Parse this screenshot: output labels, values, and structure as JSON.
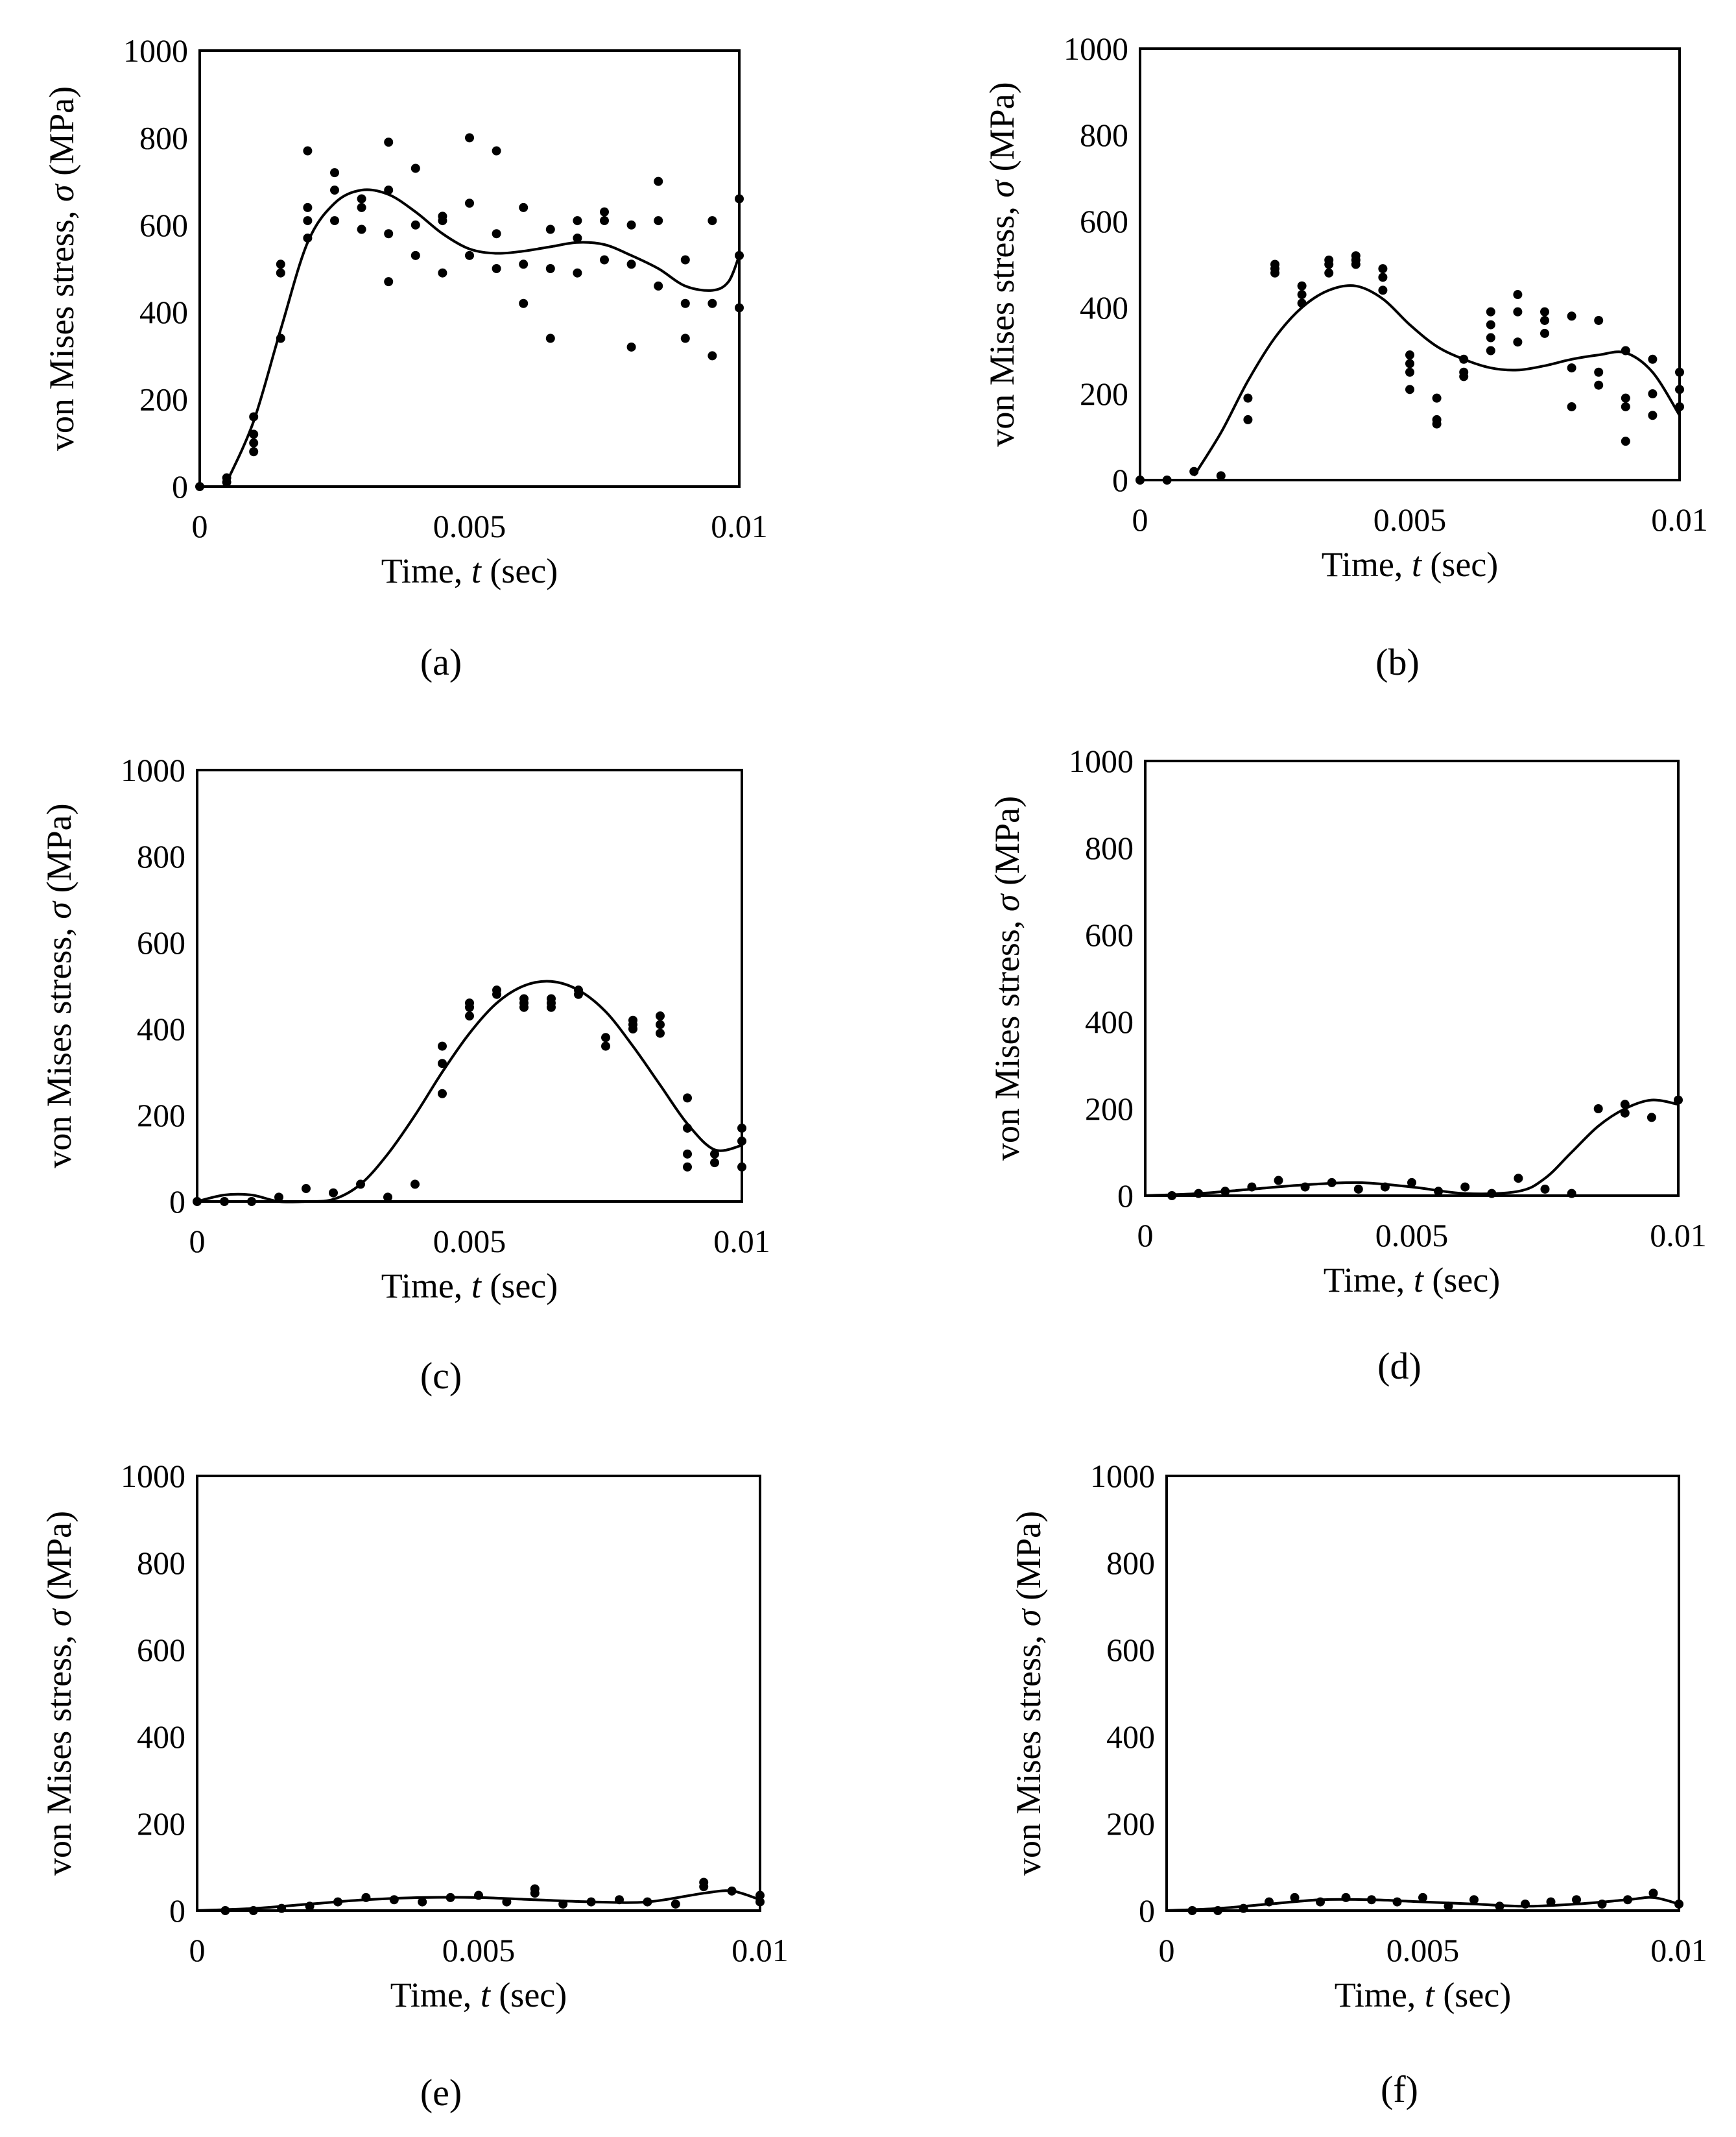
{
  "figure": {
    "panels_count": 6
  },
  "chart_data": [
    {
      "type": "scatter",
      "caption": "(a)",
      "xlabel": "Time, t (sec)",
      "xlabel_parts": [
        "Time, ",
        "t",
        " (sec)"
      ],
      "ylabel": "von Mises stress, σ (MPa)",
      "ylabel_parts": [
        "von Mises stress, ",
        "σ",
        " (MPa)"
      ],
      "xlim": [
        0,
        0.01
      ],
      "ylim": [
        0,
        1000
      ],
      "xticks": [
        0,
        0.005,
        0.01
      ],
      "xtick_labels": [
        "0",
        "0.005",
        "0.01"
      ],
      "yticks": [
        0,
        200,
        400,
        600,
        800,
        1000
      ],
      "ytick_labels": [
        "0",
        "200",
        "400",
        "600",
        "800",
        "1000"
      ],
      "series": [
        {
          "name": "simulation points",
          "kind": "points",
          "x": [
            0,
            0.0005,
            0.0005,
            0.001,
            0.001,
            0.001,
            0.001,
            0.0015,
            0.0015,
            0.0015,
            0.002,
            0.002,
            0.002,
            0.002,
            0.0025,
            0.0025,
            0.0025,
            0.003,
            0.003,
            0.003,
            0.0035,
            0.0035,
            0.0035,
            0.0035,
            0.004,
            0.004,
            0.004,
            0.0045,
            0.0045,
            0.0045,
            0.005,
            0.005,
            0.005,
            0.0055,
            0.0055,
            0.0055,
            0.006,
            0.006,
            0.006,
            0.0065,
            0.0065,
            0.0065,
            0.007,
            0.007,
            0.007,
            0.0075,
            0.0075,
            0.0075,
            0.008,
            0.008,
            0.008,
            0.0085,
            0.0085,
            0.0085,
            0.009,
            0.009,
            0.009,
            0.0095,
            0.0095,
            0.0095,
            0.01,
            0.01,
            0.01
          ],
          "y": [
            0,
            10,
            20,
            80,
            100,
            120,
            160,
            340,
            490,
            510,
            570,
            610,
            640,
            770,
            610,
            680,
            720,
            590,
            640,
            660,
            470,
            580,
            680,
            790,
            530,
            600,
            730,
            490,
            610,
            620,
            530,
            650,
            800,
            500,
            580,
            770,
            420,
            510,
            640,
            340,
            500,
            590,
            490,
            570,
            610,
            520,
            610,
            630,
            320,
            510,
            600,
            460,
            610,
            700,
            340,
            420,
            520,
            300,
            420,
            610,
            410,
            530,
            660
          ]
        },
        {
          "name": "fitted curve",
          "kind": "line",
          "x": [
            0.0005,
            0.001,
            0.0015,
            0.002,
            0.0025,
            0.003,
            0.0035,
            0.004,
            0.0045,
            0.005,
            0.0055,
            0.006,
            0.0065,
            0.007,
            0.0075,
            0.008,
            0.0085,
            0.009,
            0.0095,
            0.0098,
            0.01
          ],
          "y": [
            10,
            150,
            360,
            560,
            650,
            680,
            670,
            630,
            580,
            545,
            535,
            540,
            550,
            560,
            555,
            530,
            500,
            460,
            450,
            470,
            530
          ]
        }
      ]
    },
    {
      "type": "scatter",
      "caption": "(b)",
      "xlabel": "Time, t (sec)",
      "xlabel_parts": [
        "Time, ",
        "t",
        " (sec)"
      ],
      "ylabel": "von Mises stress, σ (MPa)",
      "ylabel_parts": [
        "von Mises stress, ",
        "σ",
        " (MPa)"
      ],
      "xlim": [
        0,
        0.01
      ],
      "ylim": [
        0,
        1000
      ],
      "xticks": [
        0,
        0.005,
        0.01
      ],
      "xtick_labels": [
        "0",
        "0.005",
        "0.01"
      ],
      "yticks": [
        0,
        200,
        400,
        600,
        800,
        1000
      ],
      "ytick_labels": [
        "0",
        "200",
        "400",
        "600",
        "800",
        "1000"
      ],
      "series": [
        {
          "name": "simulation points",
          "kind": "points",
          "x": [
            0,
            0.0005,
            0.001,
            0.0015,
            0.002,
            0.002,
            0.0025,
            0.0025,
            0.0025,
            0.003,
            0.003,
            0.003,
            0.0035,
            0.0035,
            0.0035,
            0.004,
            0.004,
            0.004,
            0.0045,
            0.0045,
            0.0045,
            0.005,
            0.005,
            0.005,
            0.005,
            0.0055,
            0.0055,
            0.0055,
            0.006,
            0.006,
            0.006,
            0.0065,
            0.0065,
            0.0065,
            0.0065,
            0.007,
            0.007,
            0.007,
            0.0075,
            0.0075,
            0.0075,
            0.008,
            0.008,
            0.008,
            0.0085,
            0.0085,
            0.0085,
            0.009,
            0.009,
            0.009,
            0.009,
            0.0095,
            0.0095,
            0.0095,
            0.01,
            0.01,
            0.01
          ],
          "y": [
            0,
            0,
            20,
            10,
            140,
            190,
            480,
            490,
            500,
            410,
            430,
            450,
            480,
            500,
            510,
            500,
            510,
            520,
            440,
            470,
            490,
            210,
            250,
            270,
            290,
            130,
            140,
            190,
            240,
            250,
            280,
            300,
            330,
            360,
            390,
            320,
            390,
            430,
            340,
            370,
            390,
            170,
            260,
            380,
            220,
            250,
            370,
            90,
            170,
            190,
            300,
            150,
            200,
            280,
            170,
            210,
            250
          ]
        },
        {
          "name": "fitted curve",
          "kind": "line",
          "x": [
            0.001,
            0.0015,
            0.002,
            0.0025,
            0.003,
            0.0035,
            0.004,
            0.0045,
            0.005,
            0.0055,
            0.006,
            0.0065,
            0.007,
            0.0075,
            0.008,
            0.0085,
            0.009,
            0.0095,
            0.01
          ],
          "y": [
            10,
            110,
            230,
            330,
            400,
            440,
            450,
            420,
            360,
            310,
            280,
            260,
            255,
            265,
            280,
            290,
            295,
            250,
            150
          ]
        }
      ]
    },
    {
      "type": "scatter",
      "caption": "(c)",
      "xlabel": "Time, t (sec)",
      "xlabel_parts": [
        "Time, ",
        "t",
        " (sec)"
      ],
      "ylabel": "von Mises stress, σ (MPa)",
      "ylabel_parts": [
        "von Mises stress, ",
        "σ",
        " (MPa)"
      ],
      "xlim": [
        0,
        0.01
      ],
      "ylim": [
        0,
        1000
      ],
      "xticks": [
        0,
        0.005,
        0.01
      ],
      "xtick_labels": [
        "0",
        "0.005",
        "0.01"
      ],
      "yticks": [
        0,
        200,
        400,
        600,
        800,
        1000
      ],
      "ytick_labels": [
        "0",
        "200",
        "400",
        "600",
        "800",
        "1000"
      ],
      "series": [
        {
          "name": "simulation points",
          "kind": "points",
          "x": [
            0,
            0.0005,
            0.001,
            0.0015,
            0.002,
            0.0025,
            0.003,
            0.0035,
            0.004,
            0.0045,
            0.0045,
            0.0045,
            0.005,
            0.005,
            0.005,
            0.0055,
            0.0055,
            0.006,
            0.006,
            0.006,
            0.0065,
            0.0065,
            0.0065,
            0.007,
            0.007,
            0.0075,
            0.0075,
            0.008,
            0.008,
            0.008,
            0.0085,
            0.0085,
            0.0085,
            0.009,
            0.009,
            0.009,
            0.009,
            0.0095,
            0.0095,
            0.01,
            0.01,
            0.01
          ],
          "y": [
            0,
            0,
            0,
            10,
            30,
            20,
            40,
            10,
            40,
            250,
            320,
            360,
            430,
            450,
            460,
            480,
            490,
            450,
            460,
            470,
            450,
            460,
            470,
            480,
            490,
            360,
            380,
            400,
            410,
            420,
            390,
            410,
            430,
            80,
            110,
            170,
            240,
            90,
            110,
            80,
            140,
            170
          ]
        },
        {
          "name": "fitted curve",
          "kind": "line",
          "x": [
            0,
            0.0005,
            0.001,
            0.0015,
            0.002,
            0.0025,
            0.003,
            0.0035,
            0.004,
            0.0045,
            0.005,
            0.0055,
            0.006,
            0.0065,
            0.007,
            0.0075,
            0.008,
            0.0085,
            0.009,
            0.0095,
            0.01
          ],
          "y": [
            0,
            15,
            15,
            0,
            0,
            5,
            40,
            110,
            200,
            300,
            390,
            460,
            500,
            510,
            490,
            440,
            360,
            270,
            180,
            120,
            130
          ]
        }
      ]
    },
    {
      "type": "scatter",
      "caption": "(d)",
      "xlabel": "Time, t (sec)",
      "xlabel_parts": [
        "Time, ",
        "t",
        " (sec)"
      ],
      "ylabel": "von Mises stress, σ (MPa)",
      "ylabel_parts": [
        "von Mises stress, ",
        "σ",
        " (MPa)"
      ],
      "xlim": [
        0,
        0.01
      ],
      "ylim": [
        0,
        1000
      ],
      "xticks": [
        0,
        0.005,
        0.01
      ],
      "xtick_labels": [
        "0",
        "0.005",
        "0.01"
      ],
      "yticks": [
        0,
        200,
        400,
        600,
        800,
        1000
      ],
      "ytick_labels": [
        "0",
        "200",
        "400",
        "600",
        "800",
        "1000"
      ],
      "series": [
        {
          "name": "simulation points",
          "kind": "points",
          "x": [
            0.0005,
            0.001,
            0.0015,
            0.002,
            0.0025,
            0.003,
            0.0035,
            0.004,
            0.0045,
            0.005,
            0.0055,
            0.006,
            0.0065,
            0.007,
            0.0075,
            0.008,
            0.0085,
            0.009,
            0.009,
            0.0095,
            0.01
          ],
          "y": [
            0,
            5,
            10,
            20,
            35,
            20,
            30,
            15,
            20,
            30,
            10,
            20,
            5,
            40,
            15,
            5,
            200,
            190,
            210,
            180,
            220
          ]
        },
        {
          "name": "fitted curve",
          "kind": "line",
          "x": [
            0,
            0.001,
            0.002,
            0.003,
            0.004,
            0.005,
            0.006,
            0.007,
            0.0075,
            0.008,
            0.0085,
            0.009,
            0.0095,
            0.01
          ],
          "y": [
            0,
            5,
            15,
            25,
            30,
            20,
            5,
            10,
            40,
            100,
            160,
            200,
            220,
            210
          ]
        }
      ]
    },
    {
      "type": "scatter",
      "caption": "(e)",
      "xlabel": "Time, t (sec)",
      "xlabel_parts": [
        "Time, ",
        "t",
        " (sec)"
      ],
      "ylabel": "von Mises stress, σ (MPa)",
      "ylabel_parts": [
        "von Mises stress, ",
        "σ",
        " (MPa)"
      ],
      "xlim": [
        0,
        0.01
      ],
      "ylim": [
        0,
        1000
      ],
      "xticks": [
        0,
        0.005,
        0.01
      ],
      "xtick_labels": [
        "0",
        "0.005",
        "0.01"
      ],
      "yticks": [
        0,
        200,
        400,
        600,
        800,
        1000
      ],
      "ytick_labels": [
        "0",
        "200",
        "400",
        "600",
        "800",
        "1000"
      ],
      "series": [
        {
          "name": "simulation points",
          "kind": "points",
          "x": [
            0.0005,
            0.001,
            0.0015,
            0.002,
            0.0025,
            0.003,
            0.0035,
            0.004,
            0.0045,
            0.005,
            0.0055,
            0.006,
            0.006,
            0.0065,
            0.007,
            0.0075,
            0.008,
            0.0085,
            0.009,
            0.009,
            0.0095,
            0.01,
            0.01
          ],
          "y": [
            0,
            0,
            5,
            10,
            20,
            30,
            25,
            20,
            30,
            35,
            20,
            40,
            50,
            15,
            20,
            25,
            20,
            15,
            55,
            65,
            45,
            20,
            35
          ]
        },
        {
          "name": "fitted curve",
          "kind": "line",
          "x": [
            0,
            0.001,
            0.002,
            0.003,
            0.004,
            0.005,
            0.006,
            0.007,
            0.008,
            0.009,
            0.0095,
            0.01
          ],
          "y": [
            0,
            5,
            15,
            25,
            30,
            30,
            25,
            20,
            20,
            40,
            45,
            25
          ]
        }
      ]
    },
    {
      "type": "scatter",
      "caption": "(f)",
      "xlabel": "Time, t (sec)",
      "xlabel_parts": [
        "Time, ",
        "t",
        " (sec)"
      ],
      "ylabel": "von Mises stress, σ (MPa)",
      "ylabel_parts": [
        "von Mises stress, ",
        "σ",
        " (MPa)"
      ],
      "xlim": [
        0,
        0.01
      ],
      "ylim": [
        0,
        1000
      ],
      "xticks": [
        0,
        0.005,
        0.01
      ],
      "xtick_labels": [
        "0",
        "0.005",
        "0.01"
      ],
      "yticks": [
        0,
        200,
        400,
        600,
        800,
        1000
      ],
      "ytick_labels": [
        "0",
        "200",
        "400",
        "600",
        "800",
        "1000"
      ],
      "series": [
        {
          "name": "simulation points",
          "kind": "points",
          "x": [
            0.0005,
            0.001,
            0.0015,
            0.002,
            0.0025,
            0.003,
            0.0035,
            0.004,
            0.0045,
            0.005,
            0.0055,
            0.006,
            0.0065,
            0.007,
            0.0075,
            0.008,
            0.0085,
            0.009,
            0.0095,
            0.01
          ],
          "y": [
            0,
            0,
            5,
            20,
            30,
            20,
            30,
            25,
            20,
            30,
            10,
            25,
            10,
            15,
            20,
            25,
            15,
            25,
            40,
            15
          ]
        },
        {
          "name": "fitted curve",
          "kind": "line",
          "x": [
            0,
            0.001,
            0.002,
            0.003,
            0.004,
            0.005,
            0.006,
            0.007,
            0.008,
            0.009,
            0.0095,
            0.01
          ],
          "y": [
            0,
            5,
            15,
            25,
            25,
            20,
            15,
            10,
            15,
            25,
            30,
            15
          ]
        }
      ]
    }
  ]
}
